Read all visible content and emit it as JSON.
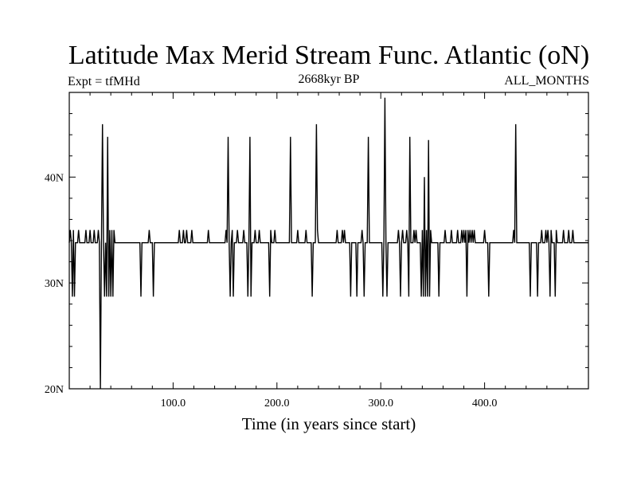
{
  "chart_data": {
    "type": "line",
    "title": "Latitude Max Merid Stream Func. Atlantic (oN)",
    "subtitle_left": "Expt = tfMHd",
    "subtitle_center": "2668kyr BP",
    "subtitle_right": "ALL_MONTHS",
    "xlabel": "Time (in years since start)",
    "ylabel": "",
    "xlim": [
      0,
      500
    ],
    "ylim": [
      20,
      48
    ],
    "x_ticks": [
      100,
      200,
      300,
      400
    ],
    "x_tick_labels": [
      "100.0",
      "200.0",
      "300.0",
      "400.0"
    ],
    "y_ticks": [
      20,
      30,
      40
    ],
    "y_tick_labels": [
      "20N",
      "30N",
      "40N"
    ],
    "grid": false,
    "series": [
      {
        "baseline": 33.8,
        "values": [
          [
            0,
            33.8
          ],
          [
            1,
            35
          ],
          [
            2,
            33.8
          ],
          [
            3,
            28.7
          ],
          [
            4,
            35
          ],
          [
            5,
            28.7
          ],
          [
            6,
            33.8
          ],
          [
            8,
            33.8
          ],
          [
            9,
            35
          ],
          [
            10,
            33.8
          ],
          [
            15,
            33.8
          ],
          [
            16,
            35
          ],
          [
            17,
            33.8
          ],
          [
            19,
            33.8
          ],
          [
            20,
            35
          ],
          [
            21,
            33.8
          ],
          [
            23,
            33.8
          ],
          [
            24,
            35
          ],
          [
            25,
            33.8
          ],
          [
            27,
            33.8
          ],
          [
            28,
            35
          ],
          [
            29,
            33.8
          ],
          [
            30,
            20
          ],
          [
            31,
            33.8
          ],
          [
            32,
            45
          ],
          [
            33,
            33.8
          ],
          [
            34,
            28.7
          ],
          [
            35,
            33.8
          ],
          [
            36,
            28.7
          ],
          [
            37,
            43.8
          ],
          [
            38,
            28.7
          ],
          [
            39,
            35
          ],
          [
            40,
            28.7
          ],
          [
            41,
            35
          ],
          [
            42,
            28.7
          ],
          [
            43,
            35
          ],
          [
            44,
            33.8
          ],
          [
            68,
            33.8
          ],
          [
            69,
            28.7
          ],
          [
            70,
            33.8
          ],
          [
            76,
            33.8
          ],
          [
            77,
            35
          ],
          [
            78,
            33.8
          ],
          [
            80,
            33.8
          ],
          [
            81,
            28.7
          ],
          [
            82,
            33.8
          ],
          [
            105,
            33.8
          ],
          [
            106,
            35
          ],
          [
            107,
            33.8
          ],
          [
            109,
            33.8
          ],
          [
            110,
            35
          ],
          [
            111,
            33.8
          ],
          [
            112,
            33.8
          ],
          [
            113,
            35
          ],
          [
            114,
            33.8
          ],
          [
            117,
            33.8
          ],
          [
            118,
            35
          ],
          [
            119,
            33.8
          ],
          [
            133,
            33.8
          ],
          [
            134,
            35
          ],
          [
            135,
            33.8
          ],
          [
            150,
            33.8
          ],
          [
            151,
            35
          ],
          [
            152,
            33.8
          ],
          [
            153,
            43.8
          ],
          [
            154,
            33.8
          ],
          [
            155,
            28.7
          ],
          [
            156,
            33.8
          ],
          [
            157,
            35
          ],
          [
            158,
            28.7
          ],
          [
            159,
            33.8
          ],
          [
            161,
            33.8
          ],
          [
            162,
            35
          ],
          [
            163,
            33.8
          ],
          [
            167,
            33.8
          ],
          [
            168,
            35
          ],
          [
            169,
            33.8
          ],
          [
            171,
            33.8
          ],
          [
            172,
            28.7
          ],
          [
            173,
            33.8
          ],
          [
            174,
            43.8
          ],
          [
            175,
            28.7
          ],
          [
            176,
            33.8
          ],
          [
            178,
            33.8
          ],
          [
            179,
            35
          ],
          [
            180,
            33.8
          ],
          [
            182,
            33.8
          ],
          [
            183,
            35
          ],
          [
            184,
            33.8
          ],
          [
            192,
            33.8
          ],
          [
            193,
            28.7
          ],
          [
            194,
            35
          ],
          [
            195,
            33.8
          ],
          [
            197,
            33.8
          ],
          [
            198,
            35
          ],
          [
            199,
            33.8
          ],
          [
            212,
            33.8
          ],
          [
            213,
            43.8
          ],
          [
            214,
            33.8
          ],
          [
            219,
            33.8
          ],
          [
            220,
            35
          ],
          [
            221,
            33.8
          ],
          [
            227,
            33.8
          ],
          [
            228,
            35
          ],
          [
            229,
            33.8
          ],
          [
            233,
            33.8
          ],
          [
            234,
            28.7
          ],
          [
            235,
            33.8
          ],
          [
            237,
            33.8
          ],
          [
            238,
            45
          ],
          [
            239,
            35
          ],
          [
            240,
            33.8
          ],
          [
            257,
            33.8
          ],
          [
            258,
            35
          ],
          [
            259,
            33.8
          ],
          [
            262,
            33.8
          ],
          [
            263,
            35
          ],
          [
            264,
            33.8
          ],
          [
            265,
            35
          ],
          [
            266,
            33.8
          ],
          [
            270,
            33.8
          ],
          [
            271,
            28.7
          ],
          [
            272,
            33.8
          ],
          [
            276,
            33.8
          ],
          [
            277,
            28.7
          ],
          [
            278,
            33.8
          ],
          [
            281,
            33.8
          ],
          [
            282,
            35
          ],
          [
            283,
            33.8
          ],
          [
            284,
            28.7
          ],
          [
            285,
            33.8
          ],
          [
            287,
            33.8
          ],
          [
            288,
            43.8
          ],
          [
            289,
            33.8
          ],
          [
            301,
            33.8
          ],
          [
            302,
            28.7
          ],
          [
            303,
            33.8
          ],
          [
            304,
            47.5
          ],
          [
            305,
            33.8
          ],
          [
            306,
            28.7
          ],
          [
            307,
            33.8
          ],
          [
            316,
            33.8
          ],
          [
            317,
            35
          ],
          [
            318,
            33.8
          ],
          [
            319,
            28.7
          ],
          [
            320,
            33.8
          ],
          [
            321,
            35
          ],
          [
            322,
            33.8
          ],
          [
            324,
            33.8
          ],
          [
            325,
            35
          ],
          [
            326,
            33.8
          ],
          [
            327,
            28.7
          ],
          [
            328,
            43.8
          ],
          [
            329,
            33.8
          ],
          [
            331,
            33.8
          ],
          [
            332,
            35
          ],
          [
            333,
            33.8
          ],
          [
            334,
            35
          ],
          [
            335,
            33.8
          ],
          [
            338,
            33.8
          ],
          [
            339,
            28.7
          ],
          [
            340,
            35
          ],
          [
            341,
            28.7
          ],
          [
            342,
            40
          ],
          [
            343,
            28.7
          ],
          [
            344,
            35
          ],
          [
            345,
            28.7
          ],
          [
            346,
            43.5
          ],
          [
            347,
            28.7
          ],
          [
            348,
            35
          ],
          [
            349,
            33.8
          ],
          [
            355,
            33.8
          ],
          [
            356,
            28.7
          ],
          [
            357,
            33.8
          ],
          [
            361,
            33.8
          ],
          [
            362,
            35
          ],
          [
            363,
            33.8
          ],
          [
            367,
            33.8
          ],
          [
            368,
            35
          ],
          [
            369,
            33.8
          ],
          [
            373,
            33.8
          ],
          [
            374,
            35
          ],
          [
            375,
            33.8
          ],
          [
            377,
            33.8
          ],
          [
            378,
            35
          ],
          [
            379,
            33.8
          ],
          [
            380,
            35
          ],
          [
            381,
            33.8
          ],
          [
            382,
            35
          ],
          [
            383,
            28.7
          ],
          [
            384,
            35
          ],
          [
            385,
            33.8
          ],
          [
            386,
            35
          ],
          [
            387,
            33.8
          ],
          [
            388,
            35
          ],
          [
            389,
            33.8
          ],
          [
            390,
            35
          ],
          [
            391,
            33.8
          ],
          [
            399,
            33.8
          ],
          [
            400,
            35
          ],
          [
            401,
            33.8
          ],
          [
            403,
            33.8
          ],
          [
            404,
            28.7
          ],
          [
            405,
            33.8
          ],
          [
            427,
            33.8
          ],
          [
            428,
            35
          ],
          [
            429,
            33.8
          ],
          [
            430,
            45
          ],
          [
            431,
            33.8
          ],
          [
            443,
            33.8
          ],
          [
            444,
            28.7
          ],
          [
            445,
            33.8
          ],
          [
            450,
            33.8
          ],
          [
            451,
            28.7
          ],
          [
            452,
            33.8
          ],
          [
            454,
            33.8
          ],
          [
            455,
            35
          ],
          [
            456,
            33.8
          ],
          [
            458,
            33.8
          ],
          [
            459,
            35
          ],
          [
            460,
            33.8
          ],
          [
            461,
            35
          ],
          [
            462,
            33.8
          ],
          [
            463,
            28.7
          ],
          [
            464,
            35
          ],
          [
            465,
            33.8
          ],
          [
            467,
            33.8
          ],
          [
            468,
            28.7
          ],
          [
            469,
            35
          ],
          [
            470,
            33.8
          ],
          [
            475,
            33.8
          ],
          [
            476,
            35
          ],
          [
            477,
            33.8
          ],
          [
            480,
            33.8
          ],
          [
            481,
            35
          ],
          [
            482,
            33.8
          ],
          [
            484,
            33.8
          ],
          [
            485,
            35
          ],
          [
            486,
            33.8
          ],
          [
            492,
            33.8
          ]
        ]
      }
    ]
  }
}
